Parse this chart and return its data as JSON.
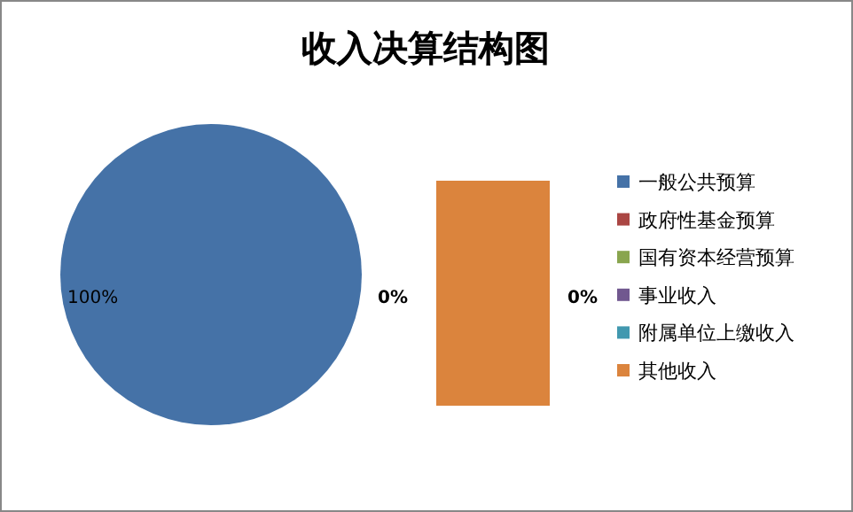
{
  "chart_data": {
    "type": "pie",
    "title": "收入决算结构图",
    "categories": [
      "一般公共预算",
      "政府性基金预算",
      "国有资本经营预算",
      "事业收入",
      "附属单位上缴收入",
      "其他收入"
    ],
    "values": [
      100,
      0,
      0,
      0,
      0,
      0
    ],
    "colors": [
      "#4572a7",
      "#aa4643",
      "#89a54e",
      "#71588f",
      "#4198af",
      "#db843d"
    ],
    "value_labels": [
      "100%",
      null,
      null,
      null,
      null,
      "0%"
    ],
    "annotations": [
      "0%"
    ],
    "legend": "right"
  }
}
